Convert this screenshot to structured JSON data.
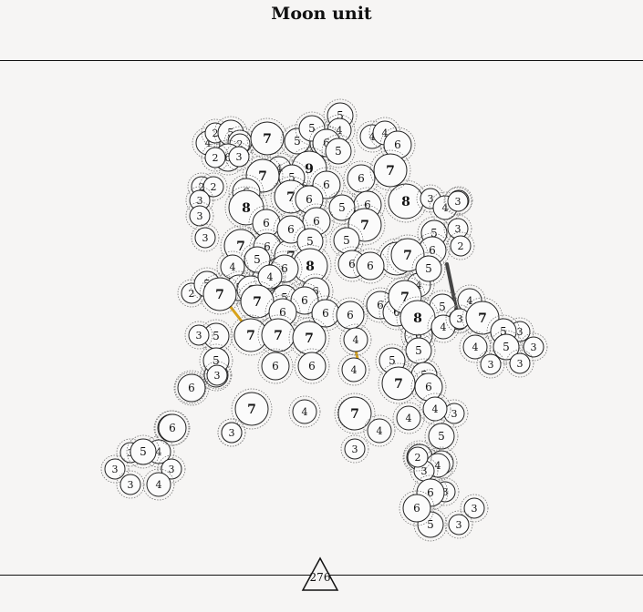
{
  "title": "Moon unit",
  "page_number": "276",
  "colors": {
    "background": "#f6f5f4",
    "node_stroke": "#222222",
    "halo_stroke": "#777777",
    "link": "#555555",
    "accent_gold": "#d8a21a",
    "accent_dark": "#444444"
  },
  "nodes": [
    {
      "label": "5"
    },
    {
      "label": "4"
    },
    {
      "label": "6"
    },
    {
      "label": "4"
    },
    {
      "label": "4"
    },
    {
      "label": "6"
    },
    {
      "label": "4"
    },
    {
      "label": "2"
    },
    {
      "label": "5"
    },
    {
      "label": "4"
    },
    {
      "label": "2"
    },
    {
      "label": "6"
    },
    {
      "label": "3"
    },
    {
      "label": "2"
    },
    {
      "label": "7"
    },
    {
      "label": "5"
    },
    {
      "label": "5"
    },
    {
      "label": "6"
    },
    {
      "label": "5"
    },
    {
      "label": "9"
    },
    {
      "label": "4"
    },
    {
      "label": "5"
    },
    {
      "label": "7"
    },
    {
      "label": "6"
    },
    {
      "label": "7"
    },
    {
      "label": "6"
    },
    {
      "label": "8"
    },
    {
      "label": "2"
    },
    {
      "label": "2"
    },
    {
      "label": "3"
    },
    {
      "label": "6"
    },
    {
      "label": "7"
    },
    {
      "label": "6"
    },
    {
      "label": "3"
    },
    {
      "label": "8"
    },
    {
      "label": "6"
    },
    {
      "label": "5"
    },
    {
      "label": "6"
    },
    {
      "label": "7"
    },
    {
      "label": "3"
    },
    {
      "label": "4"
    },
    {
      "label": "2"
    },
    {
      "label": "6"
    },
    {
      "label": "3"
    },
    {
      "label": "7"
    },
    {
      "label": "6"
    },
    {
      "label": "7"
    },
    {
      "label": "6"
    },
    {
      "label": "5"
    },
    {
      "label": "5"
    },
    {
      "label": "5"
    },
    {
      "label": "3"
    },
    {
      "label": "6"
    },
    {
      "label": "2"
    },
    {
      "label": "6"
    },
    {
      "label": "7"
    },
    {
      "label": "8"
    },
    {
      "label": "6"
    },
    {
      "label": "6"
    },
    {
      "label": "7"
    },
    {
      "label": "6"
    },
    {
      "label": "5"
    },
    {
      "label": "4"
    },
    {
      "label": "5"
    },
    {
      "label": "6"
    },
    {
      "label": "4"
    },
    {
      "label": "2"
    },
    {
      "label": "5"
    },
    {
      "label": "7"
    },
    {
      "label": "5"
    },
    {
      "label": "7"
    },
    {
      "label": "6"
    },
    {
      "label": "6"
    },
    {
      "label": "5"
    },
    {
      "label": "6"
    },
    {
      "label": "6"
    },
    {
      "label": "4"
    },
    {
      "label": "6"
    },
    {
      "label": "7"
    },
    {
      "label": "6"
    },
    {
      "label": "8"
    },
    {
      "label": "6"
    },
    {
      "label": "6"
    },
    {
      "label": "5"
    },
    {
      "label": "3"
    },
    {
      "label": "4"
    },
    {
      "label": "4"
    },
    {
      "label": "7"
    },
    {
      "label": "5"
    },
    {
      "label": "3"
    },
    {
      "label": "7"
    },
    {
      "label": "3"
    },
    {
      "label": "5"
    },
    {
      "label": "3"
    },
    {
      "label": "3"
    },
    {
      "label": "4"
    },
    {
      "label": "5"
    },
    {
      "label": "7"
    },
    {
      "label": "4"
    },
    {
      "label": "7"
    },
    {
      "label": "5"
    },
    {
      "label": "3"
    },
    {
      "label": "6"
    },
    {
      "label": "6"
    },
    {
      "label": "4"
    },
    {
      "label": "4"
    },
    {
      "label": "5"
    },
    {
      "label": "5"
    },
    {
      "label": "7"
    },
    {
      "label": "6"
    },
    {
      "label": "4"
    },
    {
      "label": "5"
    },
    {
      "label": "3"
    },
    {
      "label": "4"
    },
    {
      "label": "5"
    },
    {
      "label": "4"
    },
    {
      "label": "6"
    },
    {
      "label": "3"
    },
    {
      "label": "5"
    },
    {
      "label": "4"
    },
    {
      "label": "5"
    },
    {
      "label": "4"
    },
    {
      "label": "3"
    },
    {
      "label": "3"
    },
    {
      "label": "3"
    },
    {
      "label": "3"
    },
    {
      "label": "4"
    },
    {
      "label": "6"
    },
    {
      "label": "6"
    },
    {
      "label": "7"
    },
    {
      "label": "2"
    },
    {
      "label": "4"
    },
    {
      "label": "7"
    },
    {
      "label": "4"
    },
    {
      "label": "3"
    },
    {
      "label": "3"
    },
    {
      "label": "5"
    },
    {
      "label": "4"
    },
    {
      "label": "3"
    },
    {
      "label": "3"
    },
    {
      "label": "3"
    },
    {
      "label": "3"
    },
    {
      "label": "5"
    },
    {
      "label": "6"
    },
    {
      "label": "2"
    },
    {
      "label": "3"
    },
    {
      "label": "6"
    },
    {
      "label": "3"
    }
  ]
}
